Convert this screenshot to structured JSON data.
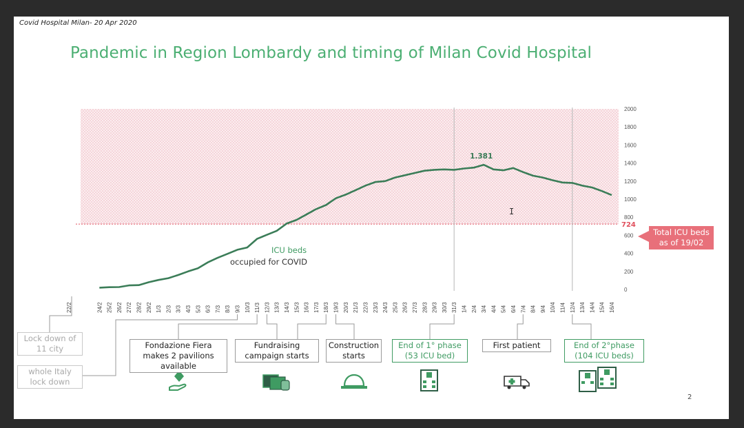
{
  "header_note": "Covid Hospital Milan- 20 Apr 2020",
  "title": "Pandemic in Region Lombardy and timing of Milan Covid Hospital",
  "page_number": "2",
  "capacity": {
    "value_label": "724",
    "label": "Total ICU beds as of 19/02",
    "color": "#e8707a"
  },
  "series_label_line1": "ICU beds",
  "series_label_line2": "occupied for COVID",
  "peak_label": "1.381",
  "annotations": [
    {
      "id": "lockdown-11-city",
      "text": "Lock down of 11 city",
      "style": "gray"
    },
    {
      "id": "italy-lockdown",
      "text": "whole Italy lock down",
      "style": "gray"
    },
    {
      "id": "fiera-pavilions",
      "text": "Fondazione Fiera makes 2 pavilions available",
      "style": "normal"
    },
    {
      "id": "fundraising",
      "text": "Fundraising campaign starts",
      "style": "normal"
    },
    {
      "id": "construction",
      "text": "Construction starts",
      "style": "normal"
    },
    {
      "id": "end-phase-1",
      "text": "End of 1° phase (53 ICU bed)",
      "style": "green"
    },
    {
      "id": "first-patient",
      "text": "First patient",
      "style": "normal"
    },
    {
      "id": "end-phase-2",
      "text": "End of 2°phase (104 ICU beds)",
      "style": "green"
    }
  ],
  "icons": [
    "hand-gem-icon",
    "money-icon",
    "hard-hat-icon",
    "hospital-icon",
    "ambulance-icon",
    "hospitals-icon"
  ],
  "colors": {
    "title": "#4caf73",
    "line": "#3b7d58",
    "capacity": "#e8707a",
    "shade": "#f6d6dc"
  },
  "chart_data": {
    "type": "line",
    "title": "Pandemic in Region Lombardy and timing of Milan Covid Hospital",
    "xlabel": "",
    "ylabel": "",
    "ylim": [
      0,
      2000
    ],
    "yticks": [
      0,
      200,
      400,
      600,
      800,
      1000,
      1200,
      1400,
      1600,
      1800,
      2000
    ],
    "categories": [
      "22/2",
      "24/2",
      "25/2",
      "26/2",
      "27/2",
      "28/2",
      "29/2",
      "1/3",
      "2/3",
      "3/3",
      "4/3",
      "5/3",
      "6/3",
      "7/3",
      "8/3",
      "9/3",
      "10/3",
      "11/3",
      "12/3",
      "13/3",
      "14/3",
      "15/3",
      "16/3",
      "17/3",
      "18/3",
      "19/3",
      "20/3",
      "21/3",
      "22/3",
      "23/3",
      "24/3",
      "25/3",
      "26/3",
      "27/3",
      "28/3",
      "29/3",
      "30/3",
      "31/3",
      "1/4",
      "2/4",
      "3/4",
      "4/4",
      "5/4",
      "6/4",
      "7/4",
      "8/4",
      "9/4",
      "10/4",
      "11/4",
      "12/4",
      "13/4",
      "14/4",
      "15/4",
      "16/4"
    ],
    "series": [
      {
        "name": "ICU beds occupied for COVID",
        "values": [
          null,
          20,
          25,
          27,
          45,
          48,
          80,
          105,
          125,
          160,
          200,
          235,
          300,
          350,
          395,
          440,
          465,
          560,
          605,
          650,
          730,
          770,
          830,
          890,
          935,
          1010,
          1050,
          1100,
          1150,
          1190,
          1200,
          1240,
          1265,
          1290,
          1315,
          1325,
          1330,
          1325,
          1340,
          1350,
          1381,
          1330,
          1320,
          1345,
          1300,
          1260,
          1240,
          1210,
          1185,
          1180,
          1150,
          1130,
          1090,
          1045
        ]
      }
    ],
    "capacity_line": {
      "value": 724,
      "label": "Total ICU beds as of 19/02"
    },
    "shaded_range": [
      724,
      2000
    ],
    "vertical_markers": [
      "31/3",
      "12/4"
    ],
    "peak_annotation": {
      "x": "3/4",
      "y": 1381,
      "label": "1.381"
    },
    "grid": false,
    "legend": "none"
  }
}
